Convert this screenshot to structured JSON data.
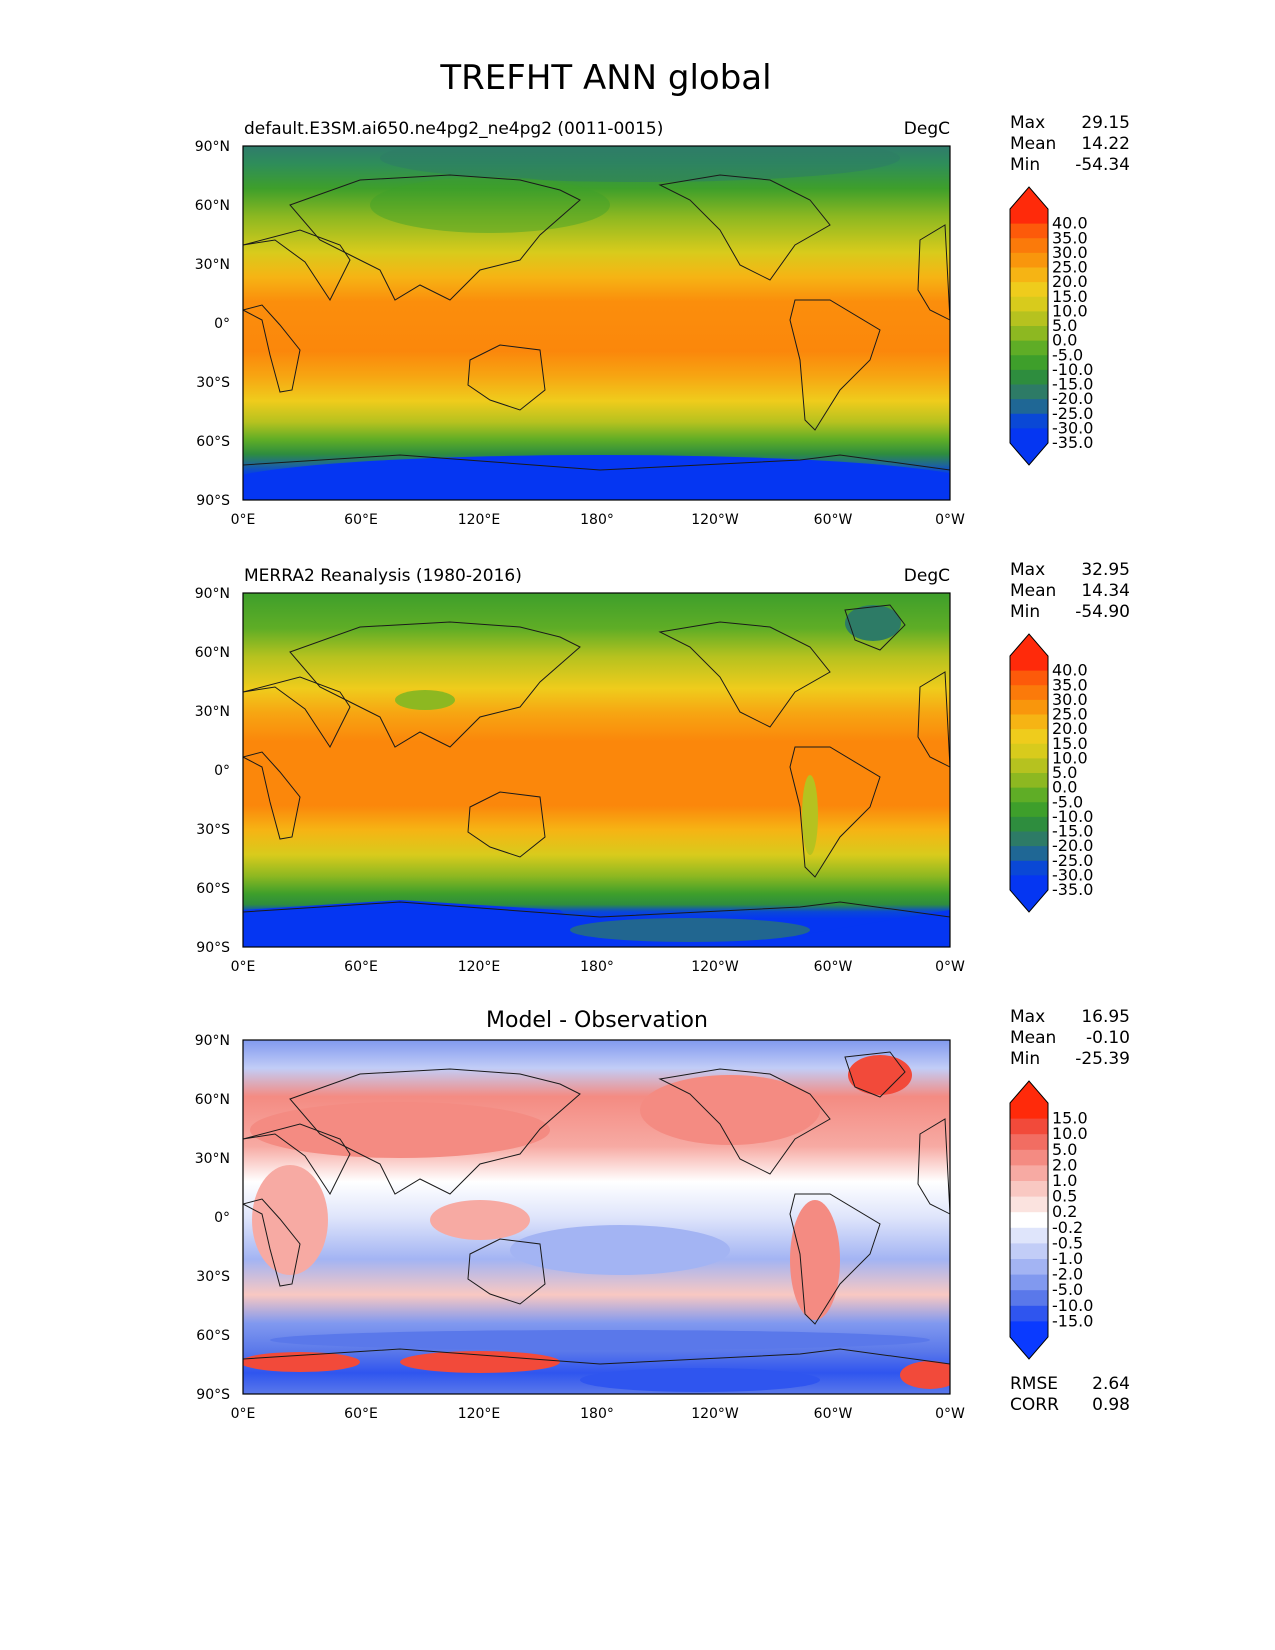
{
  "figure": {
    "title": "TREFHT ANN global",
    "lon_ticks": [
      "0°E",
      "60°E",
      "120°E",
      "180°",
      "120°W",
      "60°W",
      "0°W"
    ],
    "lat_ticks": [
      "90°N",
      "60°N",
      "30°N",
      "0°",
      "30°S",
      "60°S",
      "90°S"
    ],
    "stats_labels": {
      "max": "Max",
      "mean": "Mean",
      "min": "Min"
    },
    "metrics_labels": {
      "rmse": "RMSE",
      "corr": "CORR"
    }
  },
  "chart_data": [
    {
      "type": "heatmap",
      "id": "model",
      "title": "default.E3SM.ai650.ne4pg2_ne4pg2 (0011-0015)",
      "units": "DegC",
      "xlim": [
        0,
        360
      ],
      "ylim": [
        -90,
        90
      ],
      "stats": {
        "max": "29.15",
        "mean": "14.22",
        "min": "-54.34"
      },
      "colorbar_levels": [
        "40.0",
        "35.0",
        "30.0",
        "25.0",
        "20.0",
        "15.0",
        "10.0",
        "5.0",
        "0.0",
        "-5.0",
        "-10.0",
        "-15.0",
        "-20.0",
        "-25.0",
        "-30.0",
        "-35.0"
      ],
      "colorbar_colors": [
        "#ff2a0a",
        "#fd5a0a",
        "#fb7a0a",
        "#f9960c",
        "#f6b414",
        "#efcc1c",
        "#d8cb1c",
        "#b6c21f",
        "#8db821",
        "#5fad26",
        "#3e9f2b",
        "#2e8d3e",
        "#2d7b66",
        "#1f6795",
        "#0a48d6",
        "#0536f2"
      ],
      "extend": "both"
    },
    {
      "type": "heatmap",
      "id": "obs",
      "title": "MERRA2 Reanalysis (1980-2016)",
      "units": "DegC",
      "xlim": [
        0,
        360
      ],
      "ylim": [
        -90,
        90
      ],
      "stats": {
        "max": "32.95",
        "mean": "14.34",
        "min": "-54.90"
      },
      "colorbar_levels": [
        "40.0",
        "35.0",
        "30.0",
        "25.0",
        "20.0",
        "15.0",
        "10.0",
        "5.0",
        "0.0",
        "-5.0",
        "-10.0",
        "-15.0",
        "-20.0",
        "-25.0",
        "-30.0",
        "-35.0"
      ],
      "colorbar_colors": [
        "#ff2a0a",
        "#fd5a0a",
        "#fb7a0a",
        "#f9960c",
        "#f6b414",
        "#efcc1c",
        "#d8cb1c",
        "#b6c21f",
        "#8db821",
        "#5fad26",
        "#3e9f2b",
        "#2e8d3e",
        "#2d7b66",
        "#1f6795",
        "#0a48d6",
        "#0536f2"
      ],
      "extend": "both"
    },
    {
      "type": "heatmap",
      "id": "diff",
      "title": "Model - Observation",
      "units": "",
      "xlim": [
        0,
        360
      ],
      "ylim": [
        -90,
        90
      ],
      "stats": {
        "max": "16.95",
        "mean": "-0.10",
        "min": "-25.39"
      },
      "metrics": {
        "rmse": "2.64",
        "corr": "0.98"
      },
      "colorbar_levels": [
        "15.0",
        "10.0",
        "5.0",
        "2.0",
        "1.0",
        "0.5",
        "0.2",
        "-0.2",
        "-0.5",
        "-1.0",
        "-2.0",
        "-5.0",
        "-10.0",
        "-15.0"
      ],
      "colorbar_colors": [
        "#ff2a0a",
        "#f24a3a",
        "#f26d62",
        "#f48b82",
        "#f7aaa3",
        "#f9c8c2",
        "#fbe3df",
        "#ffffff",
        "#dfe5fb",
        "#c2cdf7",
        "#a3b4f3",
        "#8199ef",
        "#5a78ea",
        "#2f55ef",
        "#0a3aff"
      ],
      "extend": "both"
    }
  ]
}
